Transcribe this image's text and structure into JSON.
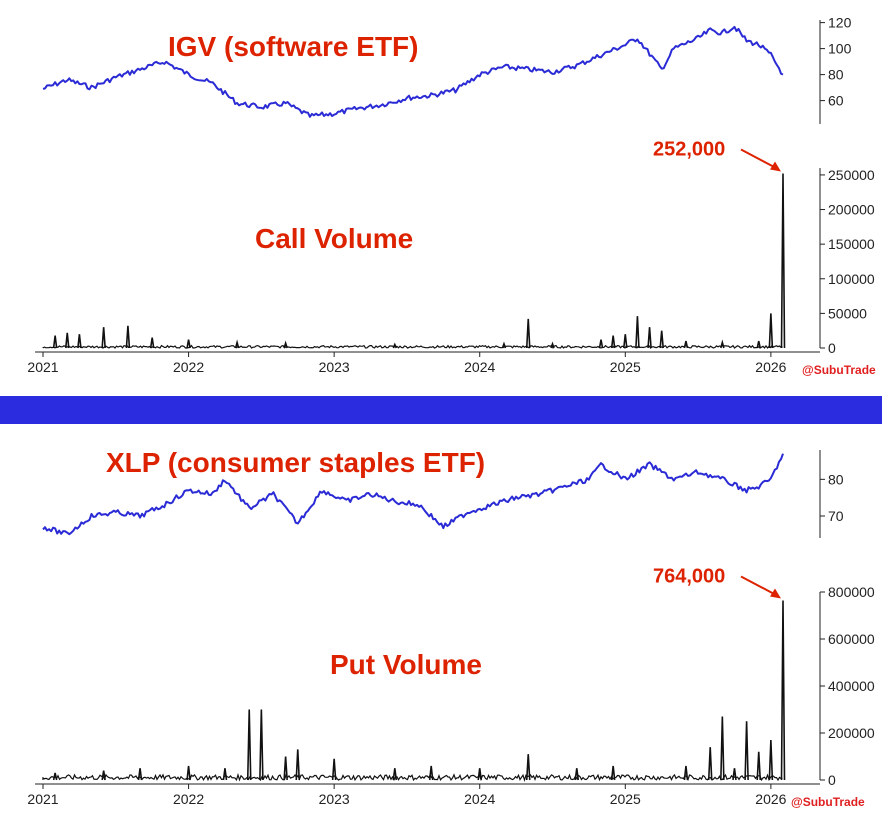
{
  "colors": {
    "price_line": "#2b2bd6",
    "volume_line": "#111111",
    "title_red": "#dd2200",
    "divider_blue": "#2b2be0",
    "handle_red": "#e02020",
    "axis": "#222222"
  },
  "watermark": "@SubuTrade",
  "x_ticks": [
    "2021",
    "2022",
    "2023",
    "2024",
    "2025",
    "2026"
  ],
  "chart_data": [
    {
      "type": "line",
      "title": "IGV (software ETF)",
      "xlabel": "",
      "ylabel": "",
      "x_range": [
        "2021-01",
        "2026-02"
      ],
      "ylim": [
        42,
        122
      ],
      "yticks": [
        "60",
        "80",
        "100",
        "120"
      ],
      "grid": false,
      "series": [
        {
          "values": [
            {
              "x": "2021-01",
              "y": 69
            },
            {
              "x": "2021-03",
              "y": 76
            },
            {
              "x": "2021-05",
              "y": 70
            },
            {
              "x": "2021-07",
              "y": 78
            },
            {
              "x": "2021-09",
              "y": 84
            },
            {
              "x": "2021-11",
              "y": 90
            },
            {
              "x": "2022-01",
              "y": 80
            },
            {
              "x": "2022-03",
              "y": 73
            },
            {
              "x": "2022-05",
              "y": 58
            },
            {
              "x": "2022-07",
              "y": 55
            },
            {
              "x": "2022-09",
              "y": 58
            },
            {
              "x": "2022-11",
              "y": 48
            },
            {
              "x": "2023-01",
              "y": 50
            },
            {
              "x": "2023-03",
              "y": 54
            },
            {
              "x": "2023-05",
              "y": 57
            },
            {
              "x": "2023-07",
              "y": 62
            },
            {
              "x": "2023-09",
              "y": 64
            },
            {
              "x": "2023-11",
              "y": 68
            },
            {
              "x": "2024-01",
              "y": 80
            },
            {
              "x": "2024-03",
              "y": 86
            },
            {
              "x": "2024-05",
              "y": 84
            },
            {
              "x": "2024-07",
              "y": 82
            },
            {
              "x": "2024-09",
              "y": 87
            },
            {
              "x": "2024-11",
              "y": 95
            },
            {
              "x": "2025-01",
              "y": 103
            },
            {
              "x": "2025-02",
              "y": 108
            },
            {
              "x": "2025-03",
              "y": 96
            },
            {
              "x": "2025-04",
              "y": 84
            },
            {
              "x": "2025-05",
              "y": 100
            },
            {
              "x": "2025-07",
              "y": 108
            },
            {
              "x": "2025-08",
              "y": 114
            },
            {
              "x": "2025-09",
              "y": 112
            },
            {
              "x": "2025-10",
              "y": 117
            },
            {
              "x": "2025-11",
              "y": 106
            },
            {
              "x": "2025-12",
              "y": 103
            },
            {
              "x": "2026-01",
              "y": 95
            },
            {
              "x": "2026-02",
              "y": 80
            }
          ]
        }
      ]
    },
    {
      "type": "line",
      "title": "Call Volume",
      "xlabel": "",
      "ylabel": "",
      "x_range": [
        "2021-01",
        "2026-02"
      ],
      "ylim": [
        0,
        260000
      ],
      "yticks": [
        "0",
        "50000",
        "100000",
        "150000",
        "200000",
        "250000"
      ],
      "grid": false,
      "annotation": {
        "text": "252,000",
        "x": "2026-02",
        "y": 252000
      },
      "spikes": [
        {
          "x": "2021-02",
          "y": 18000
        },
        {
          "x": "2021-03",
          "y": 22000
        },
        {
          "x": "2021-04",
          "y": 20000
        },
        {
          "x": "2021-06",
          "y": 30000
        },
        {
          "x": "2021-08",
          "y": 32000
        },
        {
          "x": "2021-10",
          "y": 15000
        },
        {
          "x": "2022-01",
          "y": 12000
        },
        {
          "x": "2022-05",
          "y": 8000
        },
        {
          "x": "2022-09",
          "y": 7000
        },
        {
          "x": "2023-06",
          "y": 5000
        },
        {
          "x": "2024-03",
          "y": 6000
        },
        {
          "x": "2024-05",
          "y": 42000
        },
        {
          "x": "2024-07",
          "y": 6000
        },
        {
          "x": "2024-11",
          "y": 12000
        },
        {
          "x": "2024-12",
          "y": 18000
        },
        {
          "x": "2025-01",
          "y": 20000
        },
        {
          "x": "2025-02",
          "y": 46000
        },
        {
          "x": "2025-03",
          "y": 30000
        },
        {
          "x": "2025-04",
          "y": 25000
        },
        {
          "x": "2025-06",
          "y": 10000
        },
        {
          "x": "2025-09",
          "y": 8000
        },
        {
          "x": "2025-12",
          "y": 10000
        },
        {
          "x": "2026-01",
          "y": 50000
        },
        {
          "x": "2026-02",
          "y": 252000
        }
      ]
    },
    {
      "type": "line",
      "title": "XLP (consumer staples ETF)",
      "xlabel": "",
      "ylabel": "",
      "x_range": [
        "2021-01",
        "2026-02"
      ],
      "ylim": [
        64,
        88
      ],
      "yticks": [
        "70",
        "80"
      ],
      "grid": false,
      "series": [
        {
          "values": [
            {
              "x": "2021-01",
              "y": 67
            },
            {
              "x": "2021-03",
              "y": 65
            },
            {
              "x": "2021-05",
              "y": 70
            },
            {
              "x": "2021-07",
              "y": 71
            },
            {
              "x": "2021-09",
              "y": 70
            },
            {
              "x": "2021-11",
              "y": 73
            },
            {
              "x": "2022-01",
              "y": 77
            },
            {
              "x": "2022-03",
              "y": 76
            },
            {
              "x": "2022-04",
              "y": 80
            },
            {
              "x": "2022-06",
              "y": 72
            },
            {
              "x": "2022-08",
              "y": 76
            },
            {
              "x": "2022-10",
              "y": 68
            },
            {
              "x": "2022-12",
              "y": 77
            },
            {
              "x": "2023-02",
              "y": 74
            },
            {
              "x": "2023-04",
              "y": 76
            },
            {
              "x": "2023-06",
              "y": 74
            },
            {
              "x": "2023-08",
              "y": 73
            },
            {
              "x": "2023-10",
              "y": 67
            },
            {
              "x": "2023-12",
              "y": 71
            },
            {
              "x": "2024-02",
              "y": 73
            },
            {
              "x": "2024-04",
              "y": 75
            },
            {
              "x": "2024-06",
              "y": 76
            },
            {
              "x": "2024-08",
              "y": 78
            },
            {
              "x": "2024-10",
              "y": 80
            },
            {
              "x": "2024-11",
              "y": 84
            },
            {
              "x": "2025-01",
              "y": 80
            },
            {
              "x": "2025-03",
              "y": 84
            },
            {
              "x": "2025-05",
              "y": 80
            },
            {
              "x": "2025-07",
              "y": 82
            },
            {
              "x": "2025-09",
              "y": 80
            },
            {
              "x": "2025-11",
              "y": 77
            },
            {
              "x": "2025-12",
              "y": 78
            },
            {
              "x": "2026-01",
              "y": 80
            },
            {
              "x": "2026-02",
              "y": 87
            }
          ]
        }
      ]
    },
    {
      "type": "line",
      "title": "Put Volume",
      "xlabel": "",
      "ylabel": "",
      "x_range": [
        "2021-01",
        "2026-02"
      ],
      "ylim": [
        0,
        800000
      ],
      "yticks": [
        "0",
        "200000",
        "400000",
        "600000",
        "800000"
      ],
      "grid": false,
      "annotation": {
        "text": "764,000",
        "x": "2026-02",
        "y": 764000
      },
      "spikes": [
        {
          "x": "2021-02",
          "y": 30000
        },
        {
          "x": "2021-06",
          "y": 40000
        },
        {
          "x": "2021-09",
          "y": 50000
        },
        {
          "x": "2022-01",
          "y": 60000
        },
        {
          "x": "2022-04",
          "y": 50000
        },
        {
          "x": "2022-06",
          "y": 300000
        },
        {
          "x": "2022-07",
          "y": 300000
        },
        {
          "x": "2022-09",
          "y": 100000
        },
        {
          "x": "2022-10",
          "y": 130000
        },
        {
          "x": "2023-01",
          "y": 90000
        },
        {
          "x": "2023-06",
          "y": 50000
        },
        {
          "x": "2023-09",
          "y": 60000
        },
        {
          "x": "2024-01",
          "y": 50000
        },
        {
          "x": "2024-05",
          "y": 110000
        },
        {
          "x": "2024-09",
          "y": 50000
        },
        {
          "x": "2024-12",
          "y": 60000
        },
        {
          "x": "2025-06",
          "y": 60000
        },
        {
          "x": "2025-08",
          "y": 140000
        },
        {
          "x": "2025-09",
          "y": 270000
        },
        {
          "x": "2025-10",
          "y": 50000
        },
        {
          "x": "2025-11",
          "y": 250000
        },
        {
          "x": "2025-12",
          "y": 120000
        },
        {
          "x": "2026-01",
          "y": 170000
        },
        {
          "x": "2026-02",
          "y": 764000
        }
      ]
    }
  ]
}
